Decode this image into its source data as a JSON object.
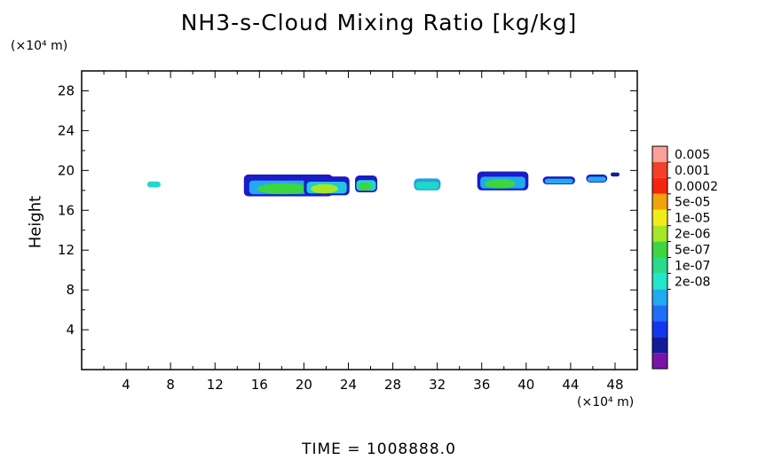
{
  "chart_data": {
    "type": "heatmap",
    "title": "NH3-s-Cloud Mixing Ratio [kg/kg]",
    "ylabel": "Height",
    "y_unit": "(×10⁴ m)",
    "x_unit": "(×10⁴ m)",
    "xlim": [
      0,
      50
    ],
    "ylim": [
      0,
      30
    ],
    "x_ticks": [
      "4",
      "8",
      "12",
      "16",
      "20",
      "24",
      "28",
      "32",
      "36",
      "40",
      "44",
      "48"
    ],
    "y_ticks": [
      "4",
      "8",
      "12",
      "16",
      "20",
      "24",
      "28"
    ],
    "time_label": "TIME  =  1008888.0",
    "colorbar": {
      "labels": [
        "0.005",
        "0.001",
        "0.0002",
        "5e-05",
        "1e-05",
        "2e-06",
        "5e-07",
        "1e-07",
        "2e-08"
      ],
      "colors": [
        "#f9a09a",
        "#f2402a",
        "#f5260e",
        "#f2a20c",
        "#f0ec1a",
        "#a6e626",
        "#3cd640",
        "#28dc8c",
        "#22e6cc",
        "#22aaf0",
        "#1e6ef6",
        "#1436ec",
        "#121c9a",
        "#7a14a8"
      ]
    },
    "regions": [
      {
        "x": [
          5.9,
          7.1
        ],
        "y": [
          18.3,
          18.9
        ],
        "outer": "#20d8c8",
        "inner": null
      },
      {
        "x": [
          14.6,
          22.6
        ],
        "y": [
          17.4,
          19.6
        ],
        "outer": "#1a1cc8",
        "mid": "#22aaf0",
        "inner": "#3cd640"
      },
      {
        "x": [
          20.0,
          24.1
        ],
        "y": [
          17.5,
          19.4
        ],
        "outer": "#1a1cc8",
        "mid": "#22c6e0",
        "inner": "#a6e626"
      },
      {
        "x": [
          24.6,
          26.6
        ],
        "y": [
          17.8,
          19.5
        ],
        "outer": "#1a1cc8",
        "mid": "#20d8c8",
        "inner": "#3cd640"
      },
      {
        "x": [
          29.9,
          32.3
        ],
        "y": [
          18.0,
          19.2
        ],
        "outer": "#22a0e6",
        "mid": "#20d8c8",
        "inner": null
      },
      {
        "x": [
          35.6,
          40.2
        ],
        "y": [
          18.0,
          19.9
        ],
        "outer": "#1a1cc8",
        "mid": "#22aaf0",
        "inner": "#3cd640"
      },
      {
        "x": [
          41.5,
          44.4
        ],
        "y": [
          18.6,
          19.4
        ],
        "outer": "#1a1cc8",
        "mid": "#22aaf0",
        "inner": null
      },
      {
        "x": [
          45.4,
          47.3
        ],
        "y": [
          18.8,
          19.6
        ],
        "outer": "#1a1cc8",
        "mid": "#22aaf0",
        "inner": null
      },
      {
        "x": [
          47.6,
          48.4
        ],
        "y": [
          19.4,
          19.8
        ],
        "outer": "#121c9a",
        "mid": null,
        "inner": null
      }
    ]
  }
}
